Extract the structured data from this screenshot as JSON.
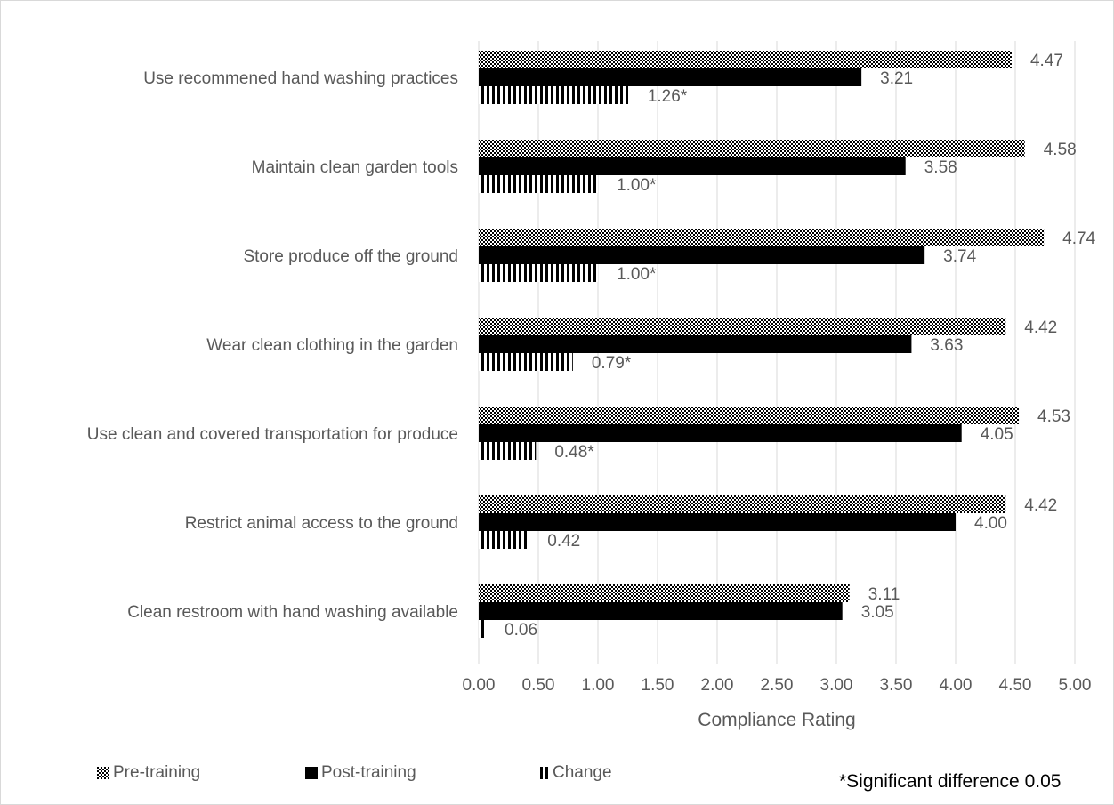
{
  "chart_data": {
    "type": "bar",
    "orientation": "horizontal",
    "categories": [
      "Use recommened hand washing practices",
      "Maintain clean garden tools",
      "Store produce off the ground",
      "Wear clean clothing in the garden",
      "Use clean and covered transportation for produce",
      "Restrict animal access to the ground",
      "Clean restroom with hand washing available"
    ],
    "series": [
      {
        "name": "Pre-training",
        "pattern": "checkered",
        "values": [
          4.47,
          4.58,
          4.74,
          4.42,
          4.53,
          4.42,
          3.11
        ],
        "labels": [
          "4.47",
          "4.58",
          "4.74",
          "4.42",
          "4.53",
          "4.42",
          "3.11"
        ]
      },
      {
        "name": "Post-training",
        "pattern": "solid",
        "values": [
          3.21,
          3.58,
          3.74,
          3.63,
          4.05,
          4.0,
          3.05
        ],
        "labels": [
          "3.21",
          "3.58",
          "3.74",
          "3.63",
          "4.05",
          "4.00",
          "3.05"
        ]
      },
      {
        "name": "Change",
        "pattern": "vertical-stripes",
        "values": [
          1.26,
          1.0,
          1.0,
          0.79,
          0.48,
          0.42,
          0.06
        ],
        "labels": [
          "1.26*",
          "1.00*",
          "1.00*",
          "0.79*",
          "0.48*",
          "0.42",
          "0.06"
        ]
      }
    ],
    "xlabel": "Compliance Rating",
    "ylabel": "",
    "xlim": [
      0,
      5
    ],
    "xticks": [
      "0.00",
      "0.50",
      "1.00",
      "1.50",
      "2.00",
      "2.50",
      "3.00",
      "3.50",
      "4.00",
      "4.50",
      "5.00"
    ],
    "grid": "vertical",
    "legend_position": "bottom",
    "footnote": "*Significant difference 0.05",
    "colors": {
      "bar": "#000000",
      "text": "#595959",
      "grid": "#d9d9d9"
    }
  }
}
